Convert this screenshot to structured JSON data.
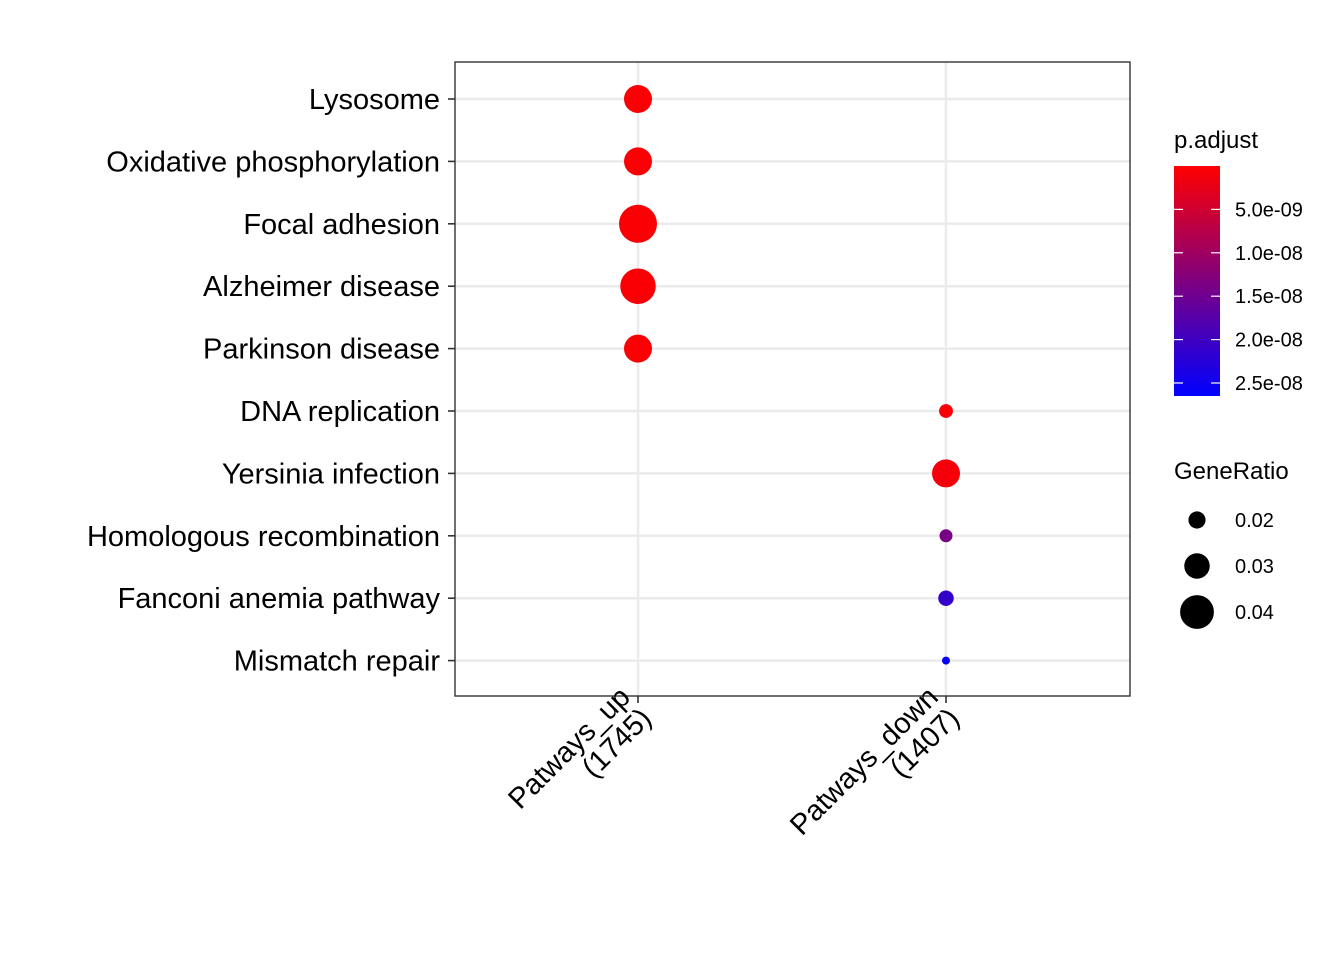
{
  "chart_data": {
    "type": "scatter",
    "x_categories": [
      "Patways_up\n(1745)",
      "Patways_down\n(1407)"
    ],
    "y_categories": [
      "Lysosome",
      "Oxidative phosphorylation",
      "Focal adhesion",
      "Alzheimer disease",
      "Parkinson disease",
      "DNA replication",
      "Yersinia infection",
      "Homologous recombination",
      "Fanconi anemia pathway",
      "Mismatch repair"
    ],
    "points": [
      {
        "x": "Patways_up\n(1745)",
        "y": "Lysosome",
        "gene_ratio": 0.033,
        "p_adjust": 5e-10
      },
      {
        "x": "Patways_up\n(1745)",
        "y": "Oxidative phosphorylation",
        "gene_ratio": 0.033,
        "p_adjust": 5e-10
      },
      {
        "x": "Patways_up\n(1745)",
        "y": "Focal adhesion",
        "gene_ratio": 0.045,
        "p_adjust": 5e-10
      },
      {
        "x": "Patways_up\n(1745)",
        "y": "Alzheimer disease",
        "gene_ratio": 0.042,
        "p_adjust": 5e-10
      },
      {
        "x": "Patways_up\n(1745)",
        "y": "Parkinson disease",
        "gene_ratio": 0.033,
        "p_adjust": 5e-10
      },
      {
        "x": "Patways_down\n(1407)",
        "y": "DNA replication",
        "gene_ratio": 0.016,
        "p_adjust": 5e-10
      },
      {
        "x": "Patways_down\n(1407)",
        "y": "Yersinia infection",
        "gene_ratio": 0.033,
        "p_adjust": 1e-09
      },
      {
        "x": "Patways_down\n(1407)",
        "y": "Homologous recombination",
        "gene_ratio": 0.015,
        "p_adjust": 1.4e-08
      },
      {
        "x": "Patways_down\n(1407)",
        "y": "Fanconi anemia pathway",
        "gene_ratio": 0.018,
        "p_adjust": 2.1e-08
      },
      {
        "x": "Patways_down\n(1407)",
        "y": "Mismatch repair",
        "gene_ratio": 0.009,
        "p_adjust": 2.6e-08
      }
    ],
    "color_legend": {
      "title": "p.adjust",
      "range": [
        0,
        2.65e-08
      ],
      "breaks": [
        5e-09,
        1e-08,
        1.5e-08,
        2e-08,
        2.5e-08
      ],
      "labels": [
        "5.0e-09",
        "1.0e-08",
        "1.5e-08",
        "2.0e-08",
        "2.5e-08"
      ],
      "low_color": "#ff0000",
      "high_color": "#0000ff",
      "reverse": true
    },
    "size_legend": {
      "title": "GeneRatio",
      "values": [
        0.02,
        0.03,
        0.04
      ],
      "labels": [
        "0.02",
        "0.03",
        "0.04"
      ]
    },
    "grid": true,
    "legend_position": "right"
  }
}
